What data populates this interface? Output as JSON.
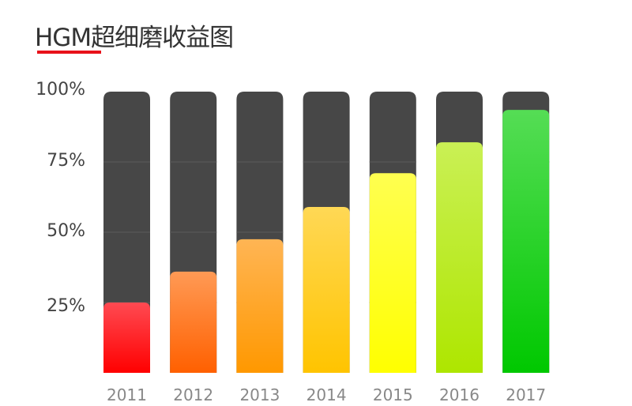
{
  "header": {
    "title": "HGM超细磨收益图",
    "accent": "#e8121a"
  },
  "chart_data": {
    "type": "bar",
    "title": "HGM超细磨收益图",
    "categories": [
      "2011",
      "2012",
      "2013",
      "2014",
      "2015",
      "2016",
      "2017"
    ],
    "values": [
      25,
      36,
      47.5,
      59,
      71,
      82,
      93.5
    ],
    "ylim": [
      0,
      100
    ],
    "yticks": [
      "25%",
      "50%",
      "75%",
      "100%"
    ],
    "ytick_values": [
      25,
      50,
      75,
      100
    ],
    "background_bar_color": "#474747",
    "colors": [
      [
        "#ff4a52",
        "#ff0000"
      ],
      [
        "#ff9a55",
        "#ff6000"
      ],
      [
        "#ffb554",
        "#ff9800"
      ],
      [
        "#ffd855",
        "#ffc400"
      ],
      [
        "#ffff50",
        "#ffff00"
      ],
      [
        "#caf055",
        "#aee600"
      ],
      [
        "#55dd55",
        "#00c800"
      ]
    ],
    "grid": true,
    "legend": "none"
  }
}
